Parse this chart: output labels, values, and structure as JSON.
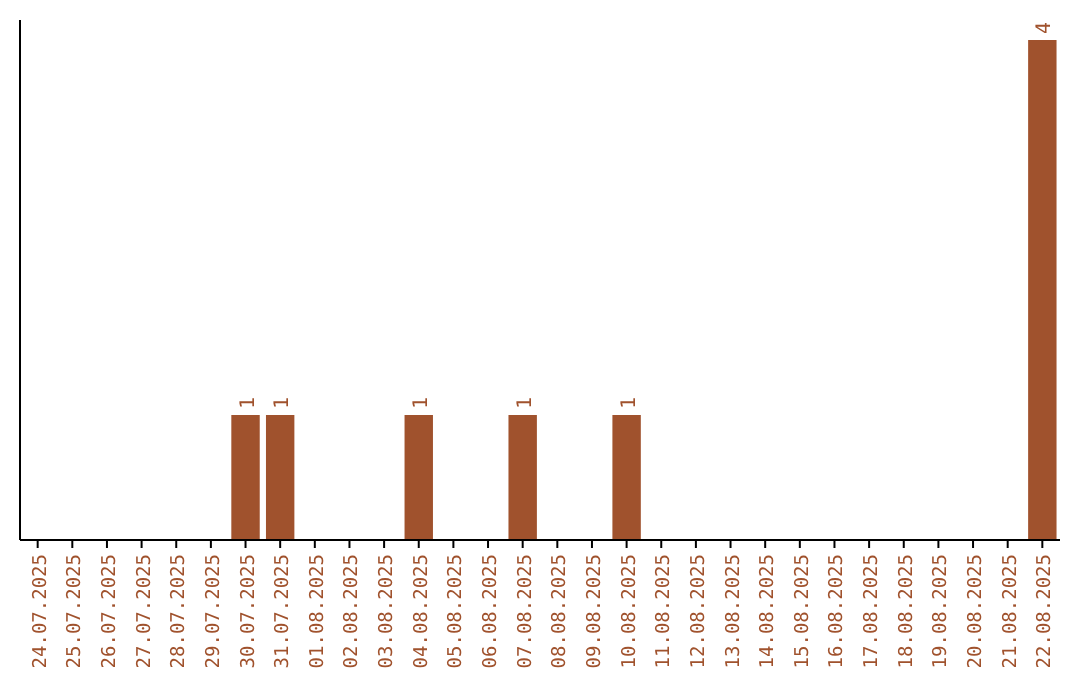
{
  "chart_data": {
    "type": "bar",
    "categories": [
      "24.07.2025",
      "25.07.2025",
      "26.07.2025",
      "27.07.2025",
      "28.07.2025",
      "29.07.2025",
      "30.07.2025",
      "31.07.2025",
      "01.08.2025",
      "02.08.2025",
      "03.08.2025",
      "04.08.2025",
      "05.08.2025",
      "06.08.2025",
      "07.08.2025",
      "08.08.2025",
      "09.08.2025",
      "10.08.2025",
      "11.08.2025",
      "12.08.2025",
      "13.08.2025",
      "14.08.2025",
      "15.08.2025",
      "16.08.2025",
      "17.08.2025",
      "18.08.2025",
      "19.08.2025",
      "20.08.2025",
      "21.08.2025",
      "22.08.2025"
    ],
    "values": [
      0,
      0,
      0,
      0,
      0,
      0,
      1,
      1,
      0,
      0,
      0,
      1,
      0,
      0,
      1,
      0,
      0,
      1,
      0,
      0,
      0,
      0,
      0,
      0,
      0,
      0,
      0,
      0,
      0,
      4
    ],
    "value_labels": [
      null,
      null,
      null,
      null,
      null,
      null,
      "1",
      "1",
      null,
      null,
      null,
      "1",
      null,
      null,
      "1",
      null,
      null,
      "1",
      null,
      null,
      null,
      null,
      null,
      null,
      null,
      null,
      null,
      null,
      null,
      "4"
    ],
    "color": "#a0522d"
  }
}
